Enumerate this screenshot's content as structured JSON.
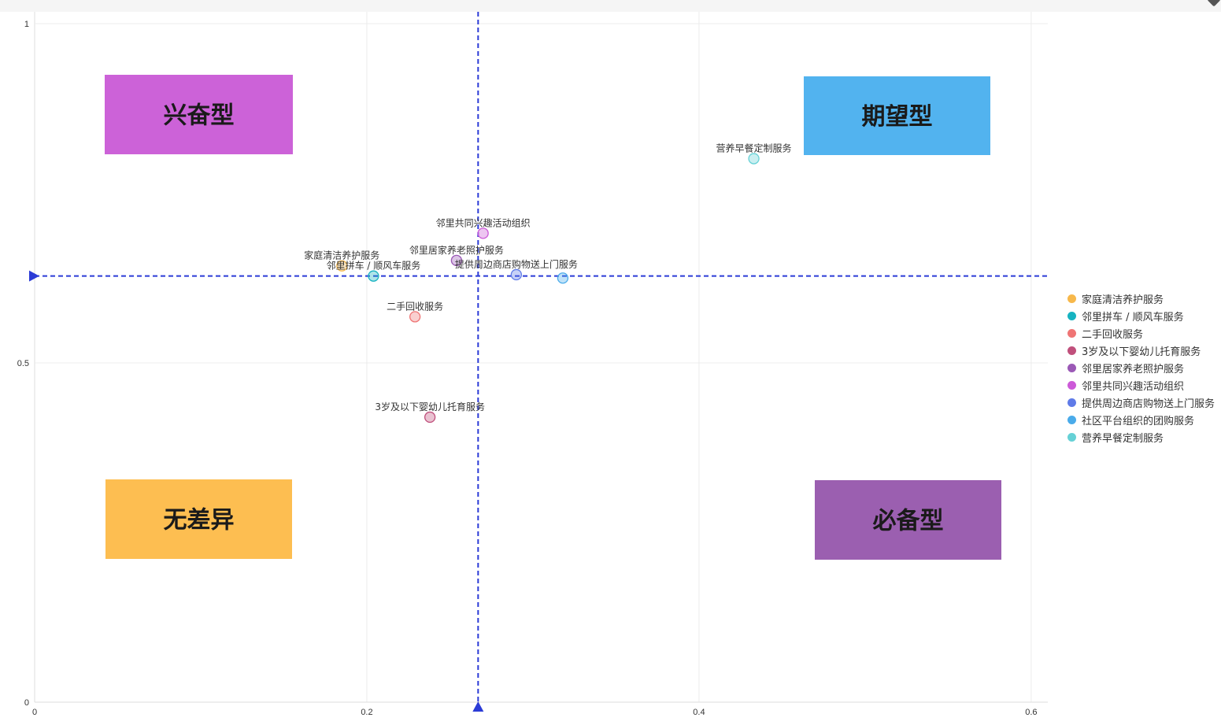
{
  "colors": {
    "grid": "#ececec",
    "axis": "#dddddd",
    "divider": "#2b3bd6"
  },
  "chart_data": {
    "type": "scatter",
    "xlim": [
      0,
      0.61
    ],
    "ylim": [
      0,
      1
    ],
    "x_ticks": [
      0,
      0.2,
      0.4,
      0.6
    ],
    "x_tick_labels": [
      "0",
      "0.2",
      "0.4",
      "0.6"
    ],
    "y_ticks": [
      0,
      0.5,
      1
    ],
    "y_tick_labels": [
      "0",
      "0.5",
      "1"
    ],
    "grid": true,
    "divider_x": 0.267,
    "divider_y": 0.628,
    "legend_position": "right",
    "quadrants": [
      {
        "label": "兴奋型",
        "color": "#cc62d8"
      },
      {
        "label": "期望型",
        "color": "#52b3ef"
      },
      {
        "label": "无差异",
        "color": "#fdbe51"
      },
      {
        "label": "必备型",
        "color": "#9b5fb0"
      }
    ],
    "series": [
      {
        "name": "家庭清洁养护服务",
        "color": "#f7b84b",
        "x": 0.185,
        "y": 0.643,
        "label": "家庭清洁养护服务"
      },
      {
        "name": "邻里拼车 / 顺风车服务",
        "color": "#17b3c1",
        "x": 0.204,
        "y": 0.628,
        "label": "邻里拼车 / 顺风车服务"
      },
      {
        "name": "二手回收服务",
        "color": "#ef7575",
        "x": 0.229,
        "y": 0.568,
        "label": "二手回收服务"
      },
      {
        "name": "3岁及以下婴幼儿托育服务",
        "color": "#c0507c",
        "x": 0.238,
        "y": 0.42,
        "label": "3岁及以下婴幼儿托育服务"
      },
      {
        "name": "邻里居家养老照护服务",
        "color": "#9b59b6",
        "x": 0.254,
        "y": 0.651,
        "label": "邻里居家养老照护服务"
      },
      {
        "name": "邻里共同兴趣活动组织",
        "color": "#cc5ad8",
        "x": 0.27,
        "y": 0.691,
        "label": "邻里共同兴趣活动组织"
      },
      {
        "name": "提供周边商店购物送上门服务",
        "color": "#5f7be8",
        "x": 0.29,
        "y": 0.63,
        "label": "提供周边商店购物送上门服务"
      },
      {
        "name": "社区平台组织的团购服务",
        "color": "#4aabea",
        "x": 0.318,
        "y": 0.625,
        "label": ""
      },
      {
        "name": "营养早餐定制服务",
        "color": "#66d1d6",
        "x": 0.433,
        "y": 0.801,
        "label": "营养早餐定制服务"
      }
    ]
  }
}
